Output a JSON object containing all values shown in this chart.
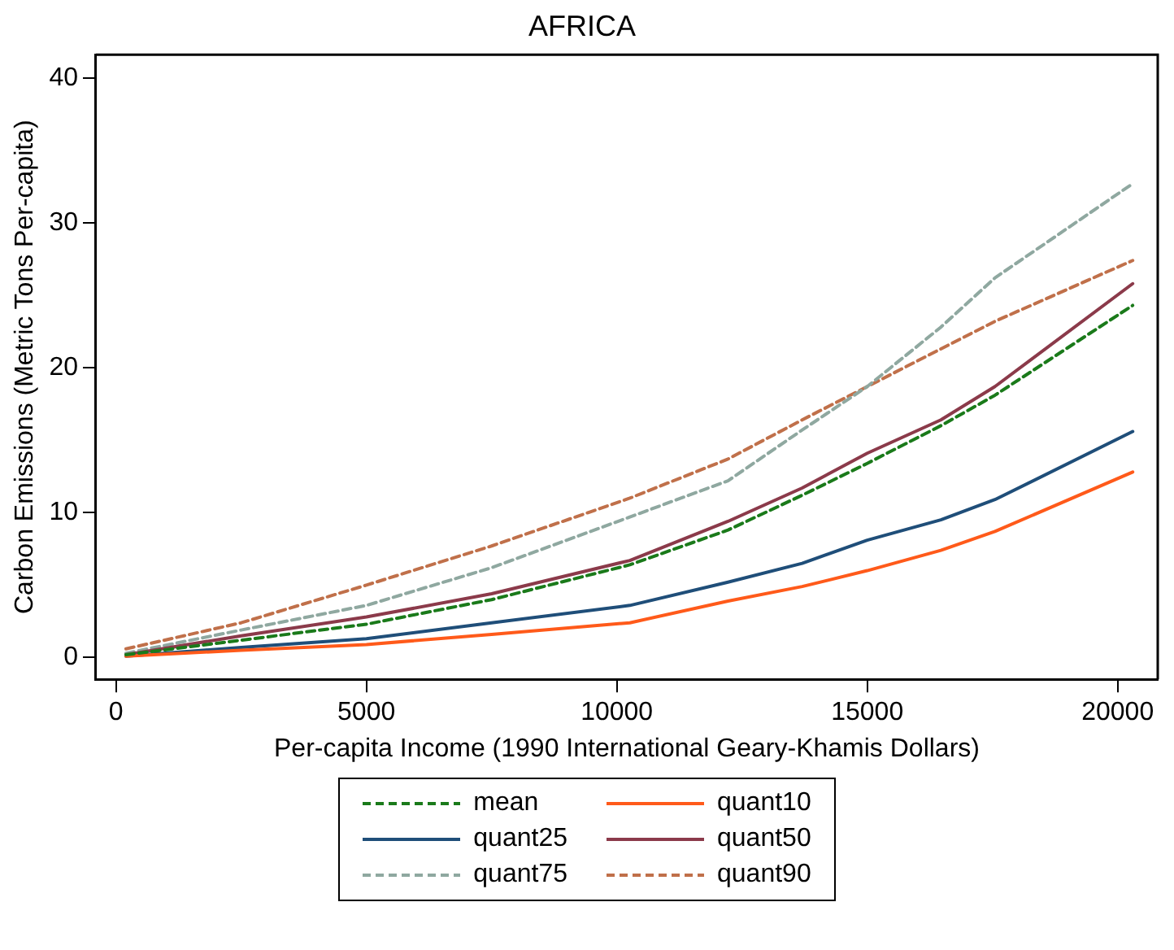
{
  "chart_data": {
    "type": "line",
    "title": "AFRICA",
    "xlabel": "Per-capita Income (1990 International Geary-Khamis Dollars)",
    "ylabel": "Carbon Emissions (Metric Tons Per-capita)",
    "x": [
      200,
      2500,
      5000,
      7500,
      10260,
      12220,
      13700,
      15000,
      16470,
      17550,
      20300
    ],
    "xlim": [
      -400,
      20800
    ],
    "xticks": [
      0,
      5000,
      10000,
      15000,
      20000
    ],
    "ylim": [
      -1.5,
      41.6
    ],
    "yticks": [
      0,
      10,
      20,
      30,
      40
    ],
    "grid": false,
    "legend": "bottom",
    "marker": "none",
    "series": [
      {
        "name": "mean",
        "color": "#1a7a1a",
        "line_style": "dashed",
        "values": [
          0.2,
          1.2,
          2.3,
          4.0,
          6.4,
          8.8,
          11.2,
          13.4,
          16.0,
          18.1,
          24.3
        ]
      },
      {
        "name": "quant10",
        "color": "#ff5a1a",
        "line_style": "solid",
        "values": [
          0.1,
          0.5,
          0.9,
          1.6,
          2.4,
          3.9,
          4.9,
          6.0,
          7.4,
          8.7,
          12.8
        ]
      },
      {
        "name": "quant25",
        "color": "#1f4e79",
        "line_style": "solid",
        "values": [
          0.1,
          0.7,
          1.3,
          2.4,
          3.6,
          5.2,
          6.5,
          8.1,
          9.5,
          10.9,
          15.6
        ]
      },
      {
        "name": "quant50",
        "color": "#8b3a4a",
        "line_style": "solid",
        "values": [
          0.2,
          1.5,
          2.8,
          4.4,
          6.7,
          9.4,
          11.7,
          14.1,
          16.4,
          18.7,
          25.8
        ]
      },
      {
        "name": "quant75",
        "color": "#8fa8a0",
        "line_style": "dashed",
        "values": [
          0.3,
          1.9,
          3.6,
          6.2,
          9.7,
          12.2,
          15.7,
          18.7,
          22.8,
          26.2,
          32.7
        ]
      },
      {
        "name": "quant90",
        "color": "#c0704a",
        "line_style": "dashed",
        "values": [
          0.6,
          2.4,
          5.0,
          7.7,
          11.0,
          13.7,
          16.4,
          18.7,
          21.3,
          23.2,
          27.4
        ]
      }
    ]
  }
}
